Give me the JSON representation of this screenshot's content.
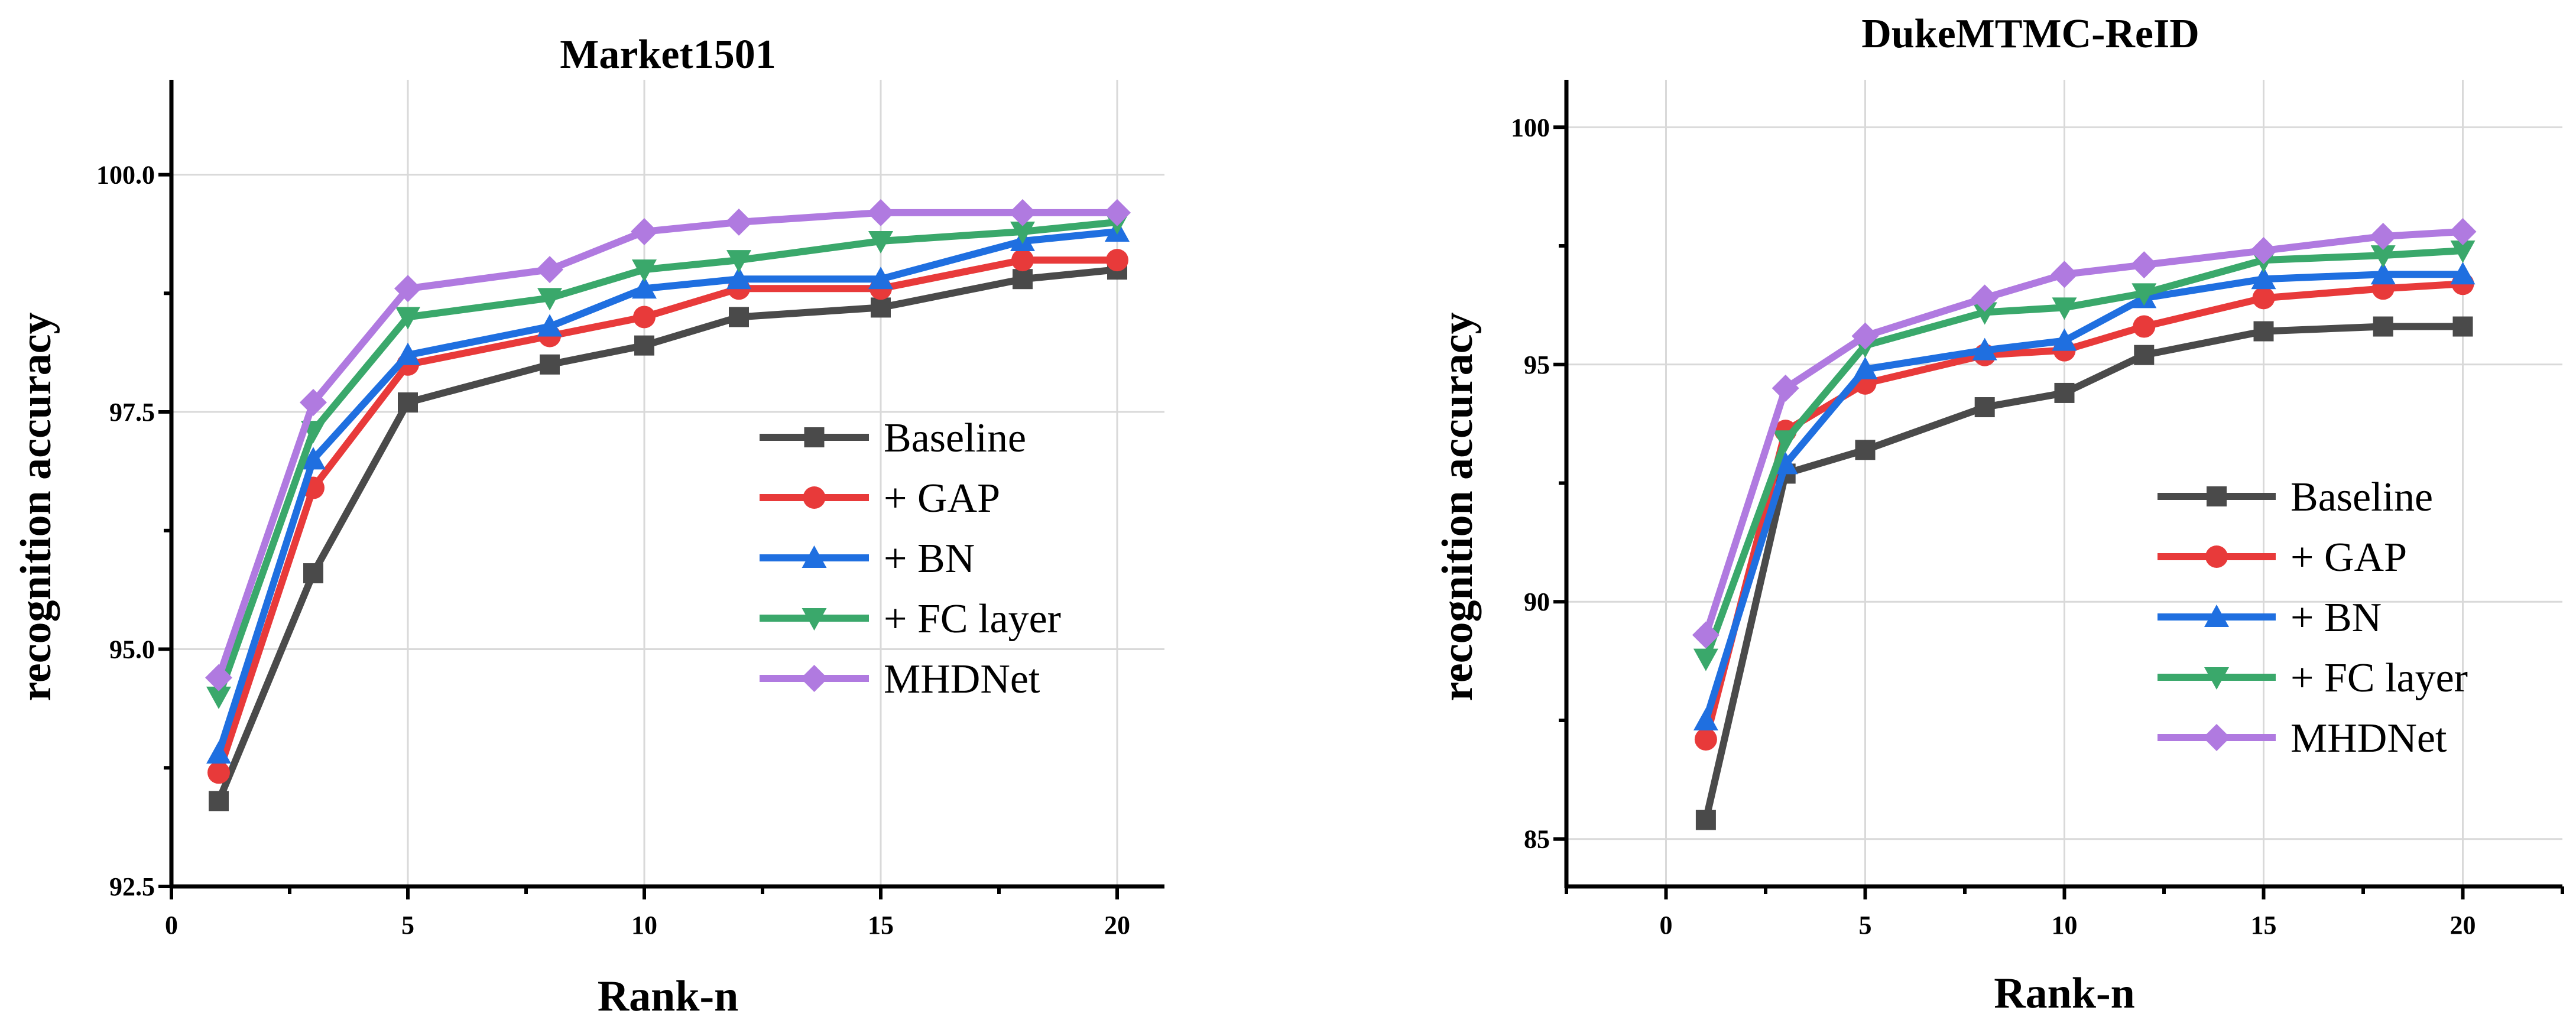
{
  "chart_data": [
    {
      "type": "line",
      "title": "Market1501",
      "xlabel": "Rank-n",
      "ylabel": "recognition accuracy",
      "xlim": [
        0,
        21
      ],
      "ylim": [
        92.5,
        101
      ],
      "xticks": [
        0,
        5,
        10,
        15,
        20
      ],
      "xtick_labels": [
        "0",
        "5",
        "10",
        "15",
        "20"
      ],
      "yticks": [
        92.5,
        95.0,
        97.5,
        100.0
      ],
      "ytick_labels": [
        "92.5",
        "95.0",
        "97.5",
        "100.0"
      ],
      "grid": true,
      "legend_position": "center-right",
      "x": [
        1,
        3,
        5,
        8,
        10,
        12,
        15,
        18,
        20
      ],
      "series": [
        {
          "name": "Baseline",
          "color": "#4a4a4a",
          "marker": "square",
          "values": [
            93.4,
            95.8,
            97.6,
            98.0,
            98.2,
            98.5,
            98.6,
            98.9,
            99.0
          ]
        },
        {
          "name": "+ GAP",
          "color": "#e83a3a",
          "marker": "circle",
          "values": [
            93.7,
            96.7,
            98.0,
            98.3,
            98.5,
            98.8,
            98.8,
            99.1,
            99.1
          ]
        },
        {
          "name": "+ BN",
          "color": "#1f6fe0",
          "marker": "triangle-up",
          "values": [
            93.9,
            97.0,
            98.1,
            98.4,
            98.8,
            98.9,
            98.9,
            99.3,
            99.4
          ]
        },
        {
          "name": "+ FC layer",
          "color": "#3aa86b",
          "marker": "triangle-down",
          "values": [
            94.5,
            97.3,
            98.5,
            98.7,
            99.0,
            99.1,
            99.3,
            99.4,
            99.5
          ]
        },
        {
          "name": "MHDNet",
          "color": "#b07ae0",
          "marker": "diamond",
          "values": [
            94.7,
            97.6,
            98.8,
            99.0,
            99.4,
            99.5,
            99.6,
            99.6,
            99.6
          ]
        }
      ]
    },
    {
      "type": "line",
      "title": "DukeMTMC-ReID",
      "xlabel": "Rank-n",
      "ylabel": "recognition accuracy",
      "xlim": [
        -2.5,
        22.5
      ],
      "ylim": [
        84,
        101
      ],
      "xticks": [
        0,
        5,
        10,
        15,
        20
      ],
      "xtick_labels": [
        "0",
        "5",
        "10",
        "15",
        "20"
      ],
      "yticks": [
        85,
        90,
        95,
        100
      ],
      "ytick_labels": [
        "85",
        "90",
        "95",
        "100"
      ],
      "grid": true,
      "legend_position": "center-right",
      "x": [
        1,
        3,
        5,
        8,
        10,
        12,
        15,
        18,
        20
      ],
      "series": [
        {
          "name": "Baseline",
          "color": "#4a4a4a",
          "marker": "square",
          "values": [
            85.4,
            92.7,
            93.2,
            94.1,
            94.4,
            95.2,
            95.7,
            95.8,
            95.8
          ]
        },
        {
          "name": "+ GAP",
          "color": "#e83a3a",
          "marker": "circle",
          "values": [
            87.1,
            93.6,
            94.6,
            95.2,
            95.3,
            95.8,
            96.4,
            96.6,
            96.7
          ]
        },
        {
          "name": "+ BN",
          "color": "#1f6fe0",
          "marker": "triangle-up",
          "values": [
            87.5,
            92.9,
            94.9,
            95.3,
            95.5,
            96.4,
            96.8,
            96.9,
            96.9
          ]
        },
        {
          "name": "+ FC layer",
          "color": "#3aa86b",
          "marker": "triangle-down",
          "values": [
            88.8,
            93.4,
            95.4,
            96.1,
            96.2,
            96.5,
            97.2,
            97.3,
            97.4
          ]
        },
        {
          "name": "MHDNet",
          "color": "#b07ae0",
          "marker": "diamond",
          "values": [
            89.3,
            94.5,
            95.6,
            96.4,
            96.9,
            97.1,
            97.4,
            97.7,
            97.8
          ]
        }
      ]
    }
  ]
}
